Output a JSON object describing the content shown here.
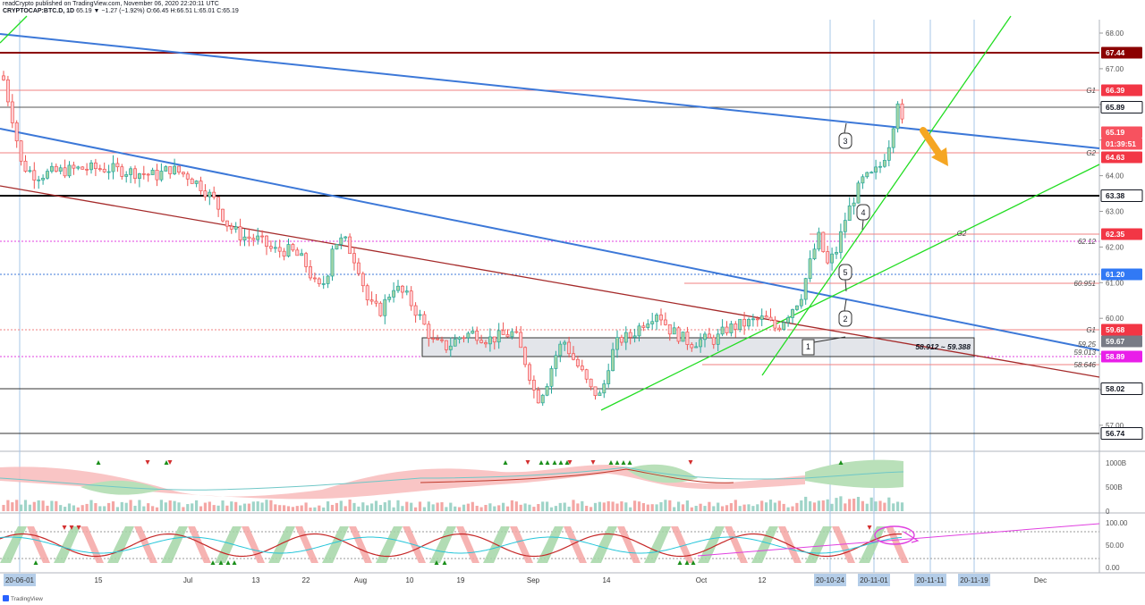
{
  "header": {
    "line1": "readCrypto published on TradingView.com, November 06, 2020 22:20:11 UTC",
    "symbol": "CRYPTOCAP:BTC.D, 1D",
    "ohlc": "65.19 ▼ −1.27 (−1.92%) O:66.45 H:66.51 L:65.01 C:65.19"
  },
  "price_axis": {
    "ticks": [
      "68.00",
      "67.00",
      "66.00",
      "65.00",
      "64.00",
      "63.00",
      "62.00",
      "61.00",
      "60.00",
      "59.00",
      "58.00",
      "57.00"
    ],
    "labels": [
      {
        "text": "67.44",
        "color": "#8b0000"
      },
      {
        "text": "66.39",
        "color": "#f23645"
      },
      {
        "text": "65.89",
        "color": "#131722"
      },
      {
        "text": "65.19",
        "color": "#f7525f"
      },
      {
        "text": "01:39:51",
        "color": "#f7525f"
      },
      {
        "text": "64.63",
        "color": "#f23645"
      },
      {
        "text": "63.38",
        "color": "#131722"
      },
      {
        "text": "62.35",
        "color": "#f23645"
      },
      {
        "text": "61.20",
        "color": "#3179f5"
      },
      {
        "text": "59.68",
        "color": "#f23645"
      },
      {
        "text": "59.67",
        "color": "#787b86"
      },
      {
        "text": "58.89",
        "color": "#e91ee9"
      },
      {
        "text": "58.02",
        "color": "#131722"
      },
      {
        "text": "56.74",
        "color": "#131722"
      }
    ]
  },
  "chart_labels": {
    "g1_top": "G1",
    "g2_top": "G2",
    "g2_mid": "G2",
    "g1_low": "G1",
    "v_6212": "62.12",
    "v_60951": "60.951",
    "v_5925": "59.25",
    "v_59013": "59.013",
    "v_58646": "58.646",
    "range_box": "58.912 ~ 59.388",
    "callouts": [
      "1",
      "2",
      "3",
      "4",
      "5"
    ]
  },
  "volume_axis": [
    "1000B",
    "500B",
    "0"
  ],
  "osc_axis": [
    "100.00",
    "50.00",
    "0.00"
  ],
  "time_axis": [
    {
      "text": "20-06-01",
      "highlight": true
    },
    {
      "text": "15",
      "highlight": false
    },
    {
      "text": "Jul",
      "highlight": false
    },
    {
      "text": "13",
      "highlight": false
    },
    {
      "text": "22",
      "highlight": false
    },
    {
      "text": "Aug",
      "highlight": false
    },
    {
      "text": "10",
      "highlight": false
    },
    {
      "text": "19",
      "highlight": false
    },
    {
      "text": "Sep",
      "highlight": false
    },
    {
      "text": "14",
      "highlight": false
    },
    {
      "text": "Oct",
      "highlight": false
    },
    {
      "text": "12",
      "highlight": false
    },
    {
      "text": "20-10-24",
      "highlight": true
    },
    {
      "text": "20-11-01",
      "highlight": true
    },
    {
      "text": "20-11-11",
      "highlight": true
    },
    {
      "text": "20-11-19",
      "highlight": true
    },
    {
      "text": "Dec",
      "highlight": false
    }
  ],
  "brand": "TradingView",
  "colors": {
    "up": "#26a69a",
    "down": "#ef5350",
    "upFill": "#a5d6a7",
    "downFill": "#ffcdd2",
    "blue": "#3c78d8",
    "green": "#22dd22",
    "darkred": "#a52a2a"
  }
}
